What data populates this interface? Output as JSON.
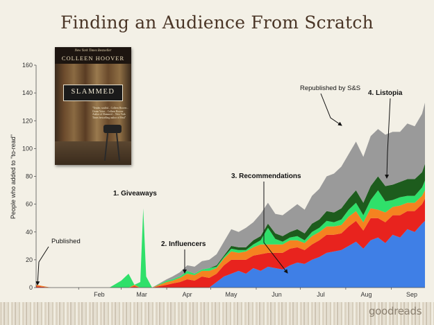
{
  "page": {
    "title": "Finding an Audience From Scratch",
    "logo_text": "goodreads"
  },
  "book_cover": {
    "tagline": "New York Times Bestseller",
    "author": "COLLEEN HOOVER",
    "title": "SLAMMED",
    "blurb": "\"Tender, soulful... Colleen Hoover... Ocean Voice... Colleen Hoover Author of Slammed ... New York Times bestselling author of Heal\""
  },
  "chart_data": {
    "type": "area",
    "stacked": true,
    "ylabel": "People who added to \"to-read\"",
    "ylim": [
      0,
      160
    ],
    "yticks": [
      0,
      20,
      40,
      60,
      80,
      100,
      120,
      140,
      160
    ],
    "x_tick_labels": [
      "Feb",
      "Mar",
      "Apr",
      "May",
      "Jun",
      "Jul",
      "Aug",
      "Sep"
    ],
    "x_range": [
      "2012-01-03",
      "2012-09-24"
    ],
    "grid": false,
    "legend": "none",
    "series_colors": [
      "#3f7fe6",
      "#e8231e",
      "#f58220",
      "#2fe06a",
      "#1d5c1d",
      "#9a9a9a"
    ],
    "x": [
      "01-03",
      "01-13",
      "01-23",
      "02-02",
      "02-12",
      "02-22",
      "03-01",
      "03-06",
      "03-10",
      "03-14",
      "03-16",
      "03-18",
      "03-22",
      "04-01",
      "04-05",
      "04-10",
      "04-15",
      "04-20",
      "04-25",
      "04-30",
      "05-05",
      "05-10",
      "05-15",
      "05-20",
      "05-25",
      "05-30",
      "06-04",
      "06-09",
      "06-14",
      "06-19",
      "06-24",
      "06-29",
      "07-04",
      "07-09",
      "07-14",
      "07-19",
      "07-24",
      "07-29",
      "08-03",
      "08-08",
      "08-13",
      "08-18",
      "08-23",
      "08-28",
      "09-02",
      "09-07",
      "09-12",
      "09-17",
      "09-22",
      "09-24"
    ],
    "series": [
      {
        "values": [
          0,
          0,
          0,
          0,
          0,
          0,
          0,
          0,
          0,
          0,
          0,
          0,
          0,
          0,
          0,
          0,
          0,
          0,
          0,
          0,
          4,
          8,
          10,
          12,
          10,
          14,
          12,
          15,
          14,
          13,
          16,
          18,
          17,
          20,
          22,
          25,
          26,
          27,
          30,
          33,
          28,
          34,
          36,
          32,
          38,
          36,
          42,
          40,
          46,
          48
        ]
      },
      {
        "values": [
          1,
          0,
          0,
          0,
          0,
          0,
          0,
          0,
          1,
          0,
          0,
          0,
          0,
          2,
          3,
          4,
          6,
          5,
          8,
          7,
          6,
          8,
          10,
          8,
          10,
          9,
          12,
          10,
          11,
          12,
          12,
          11,
          10,
          11,
          12,
          13,
          12,
          12,
          14,
          15,
          13,
          16,
          14,
          15,
          14,
          16,
          13,
          15,
          14,
          16
        ]
      },
      {
        "values": [
          1,
          0,
          0,
          0,
          0,
          0,
          0,
          0,
          1,
          0,
          0,
          0,
          0,
          2,
          2,
          3,
          4,
          4,
          4,
          5,
          4,
          5,
          6,
          5,
          6,
          6,
          7,
          6,
          6,
          6,
          6,
          5,
          5,
          6,
          6,
          6,
          6,
          6,
          7,
          7,
          6,
          7,
          6,
          7,
          6,
          7,
          6,
          6,
          6,
          6
        ]
      },
      {
        "values": [
          0,
          0,
          0,
          0,
          0,
          0,
          5,
          10,
          0,
          4,
          57,
          8,
          0,
          1,
          1,
          1,
          2,
          1,
          1,
          2,
          1,
          1,
          2,
          2,
          1,
          2,
          3,
          12,
          4,
          2,
          2,
          3,
          2,
          3,
          3,
          4,
          3,
          4,
          5,
          6,
          5,
          6,
          14,
          8,
          5,
          6,
          5,
          5,
          6,
          7
        ]
      },
      {
        "values": [
          0,
          0,
          0,
          0,
          0,
          0,
          0,
          0,
          0,
          0,
          0,
          0,
          0,
          0,
          0,
          0,
          0,
          0,
          0,
          0,
          1,
          1,
          2,
          2,
          2,
          3,
          3,
          3,
          4,
          4,
          4,
          5,
          5,
          6,
          6,
          7,
          7,
          8,
          8,
          9,
          9,
          10,
          10,
          11,
          11,
          11,
          12,
          12,
          11,
          12
        ]
      },
      {
        "values": [
          0,
          0,
          0,
          0,
          0,
          0,
          0,
          0,
          0,
          0,
          0,
          0,
          0,
          1,
          2,
          3,
          4,
          5,
          6,
          6,
          8,
          10,
          12,
          11,
          14,
          13,
          16,
          15,
          14,
          15,
          16,
          18,
          17,
          20,
          22,
          25,
          28,
          30,
          32,
          35,
          33,
          36,
          34,
          37,
          38,
          36,
          40,
          38,
          42,
          44
        ]
      }
    ],
    "annotations": [
      {
        "text": "Published",
        "bold": false
      },
      {
        "text": "1. Giveaways",
        "bold": true
      },
      {
        "text": "2. Influencers",
        "bold": true
      },
      {
        "text": "3. Recommendations",
        "bold": true
      },
      {
        "text": "Republished by S&S",
        "bold": false
      },
      {
        "text": "4. Listopia",
        "bold": true
      }
    ]
  }
}
